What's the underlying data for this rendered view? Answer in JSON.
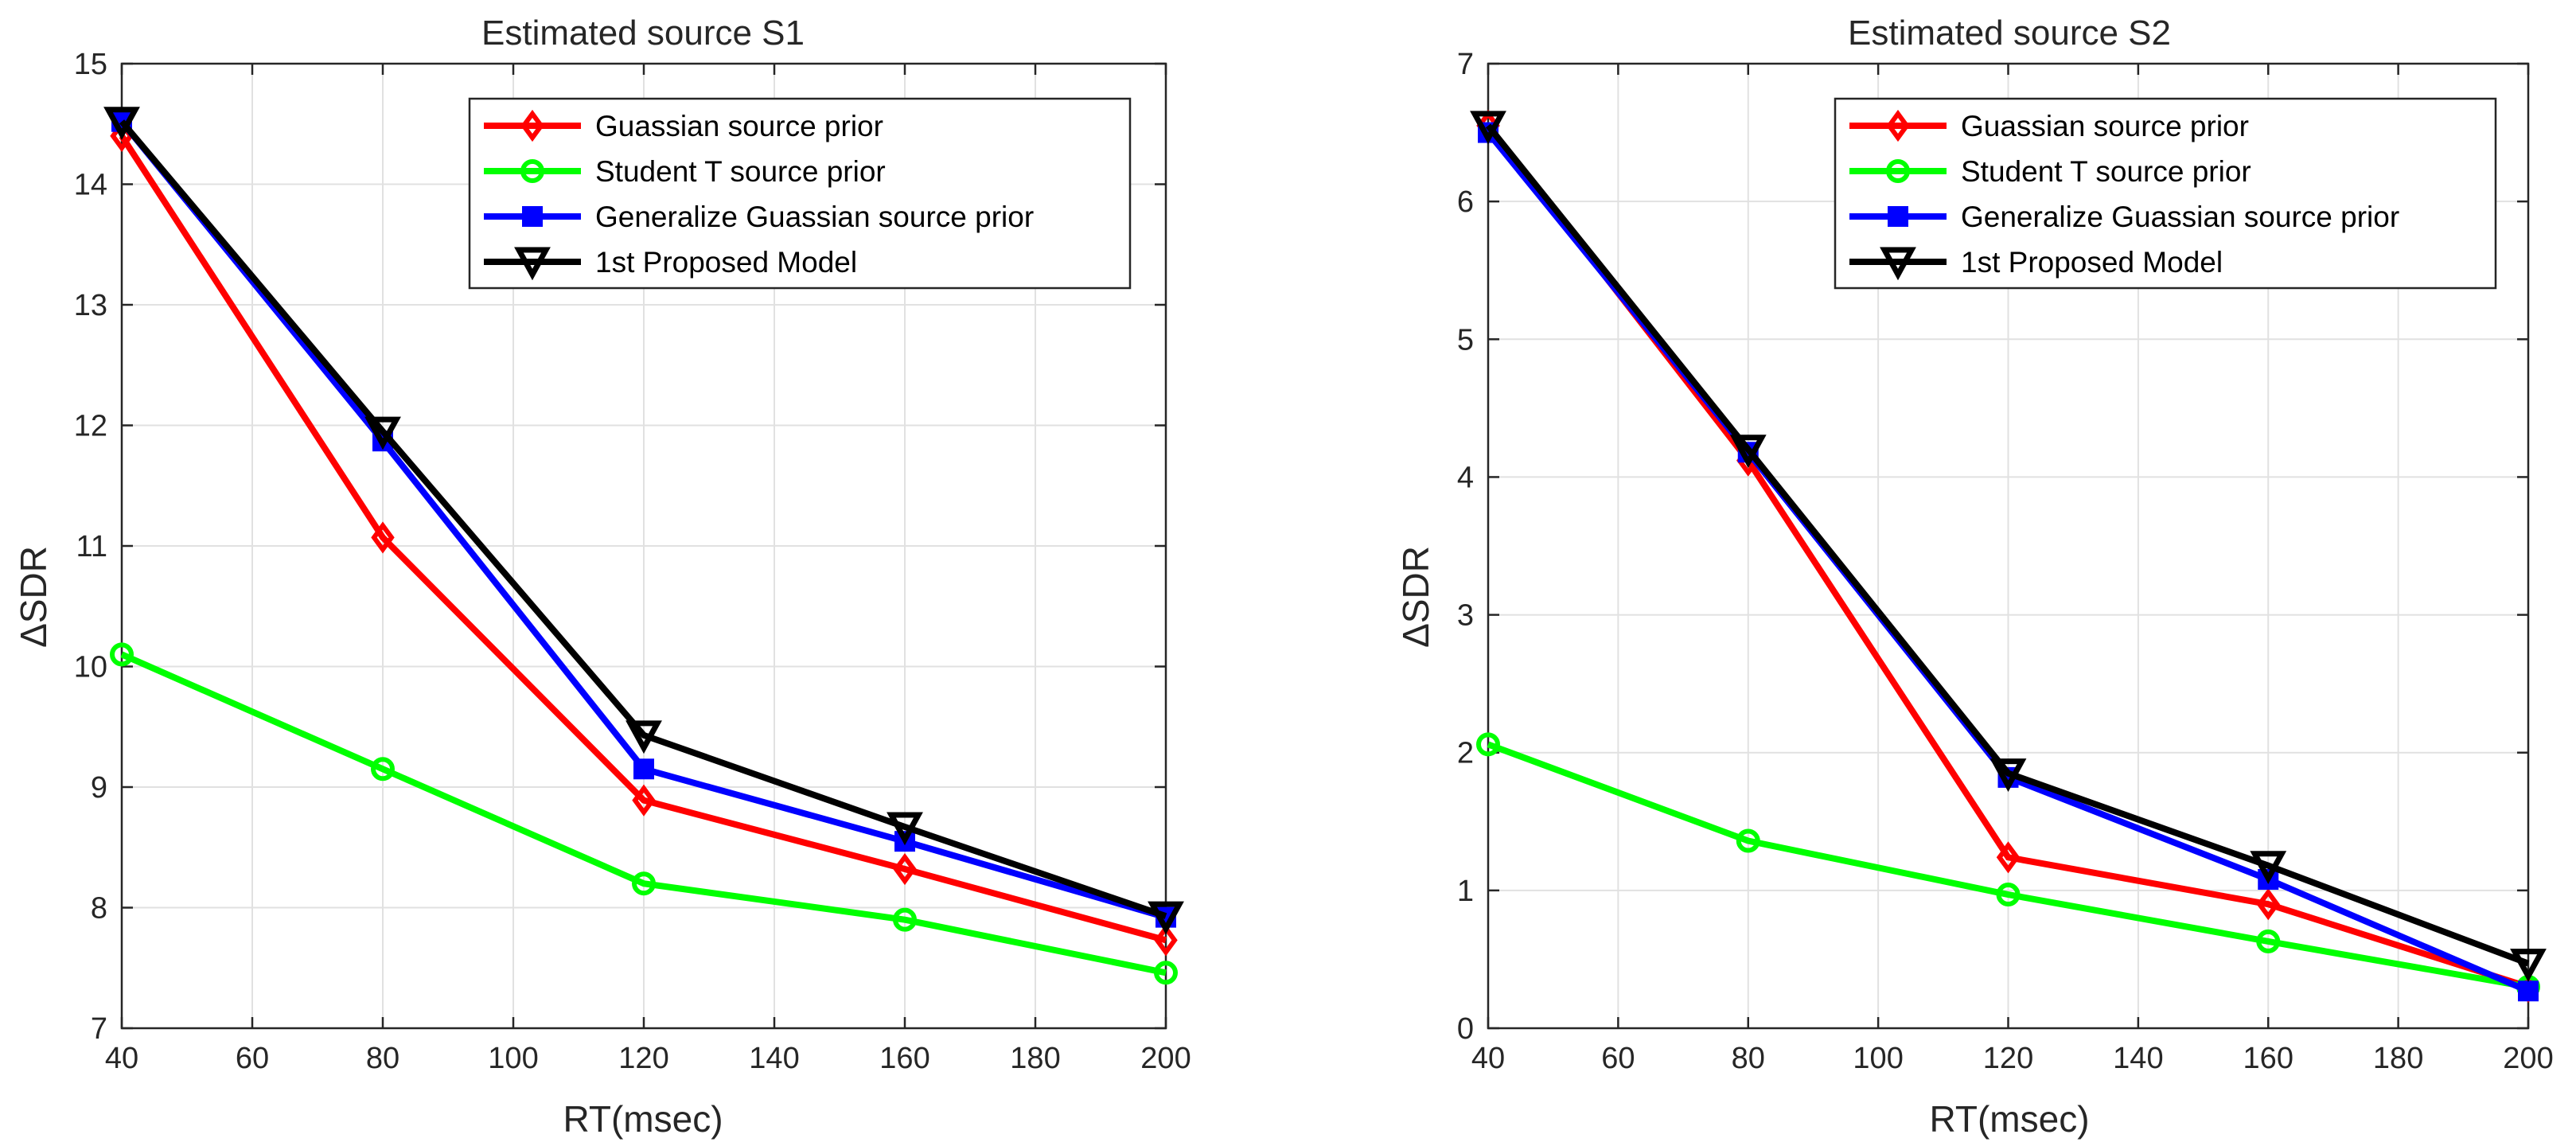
{
  "chart_data": [
    {
      "type": "line",
      "title": "Estimated source S1",
      "xlabel": "RT(msec)",
      "ylabel": "ΔSDR",
      "xlim": [
        40,
        200
      ],
      "ylim": [
        7,
        15
      ],
      "xticks": [
        40,
        60,
        80,
        100,
        120,
        140,
        160,
        180,
        200
      ],
      "yticks": [
        7,
        8,
        9,
        10,
        11,
        12,
        13,
        14,
        15
      ],
      "grid": true,
      "legend_position": "top-right",
      "x": [
        40,
        80,
        120,
        160,
        200
      ],
      "series": [
        {
          "name": "Guassian source prior",
          "color": "#ff0000",
          "marker": "diamond",
          "values": [
            14.4,
            11.07,
            8.89,
            8.32,
            7.73
          ]
        },
        {
          "name": "Student T source prior",
          "color": "#00ff00",
          "marker": "circle",
          "values": [
            10.1,
            9.15,
            8.2,
            7.9,
            7.46
          ]
        },
        {
          "name": "Generalize Guassian source prior",
          "color": "#0000ff",
          "marker": "square",
          "values": [
            14.52,
            11.87,
            9.15,
            8.55,
            7.92
          ]
        },
        {
          "name": "1st Proposed Model",
          "color": "#000000",
          "marker": "triangle-down",
          "values": [
            14.52,
            11.95,
            9.43,
            8.67,
            7.93
          ]
        }
      ]
    },
    {
      "type": "line",
      "title": "Estimated source S2",
      "xlabel": "RT(msec)",
      "ylabel": "ΔSDR",
      "xlim": [
        40,
        200
      ],
      "ylim": [
        0,
        7
      ],
      "xticks": [
        40,
        60,
        80,
        100,
        120,
        140,
        160,
        180,
        200
      ],
      "yticks": [
        0,
        1,
        2,
        3,
        4,
        5,
        6,
        7
      ],
      "grid": true,
      "legend_position": "top-right",
      "x": [
        40,
        80,
        120,
        160,
        200
      ],
      "series": [
        {
          "name": "Guassian source prior",
          "color": "#ff0000",
          "marker": "diamond",
          "values": [
            6.55,
            4.12,
            1.24,
            0.9,
            0.3
          ]
        },
        {
          "name": "Student T source prior",
          "color": "#00ff00",
          "marker": "circle",
          "values": [
            2.06,
            1.36,
            0.97,
            0.63,
            0.3
          ]
        },
        {
          "name": "Generalize Guassian source prior",
          "color": "#0000ff",
          "marker": "square",
          "values": [
            6.5,
            4.18,
            1.82,
            1.08,
            0.27
          ]
        },
        {
          "name": "1st Proposed Model",
          "color": "#000000",
          "marker": "triangle-down",
          "values": [
            6.55,
            4.2,
            1.85,
            1.18,
            0.47
          ]
        }
      ]
    }
  ]
}
